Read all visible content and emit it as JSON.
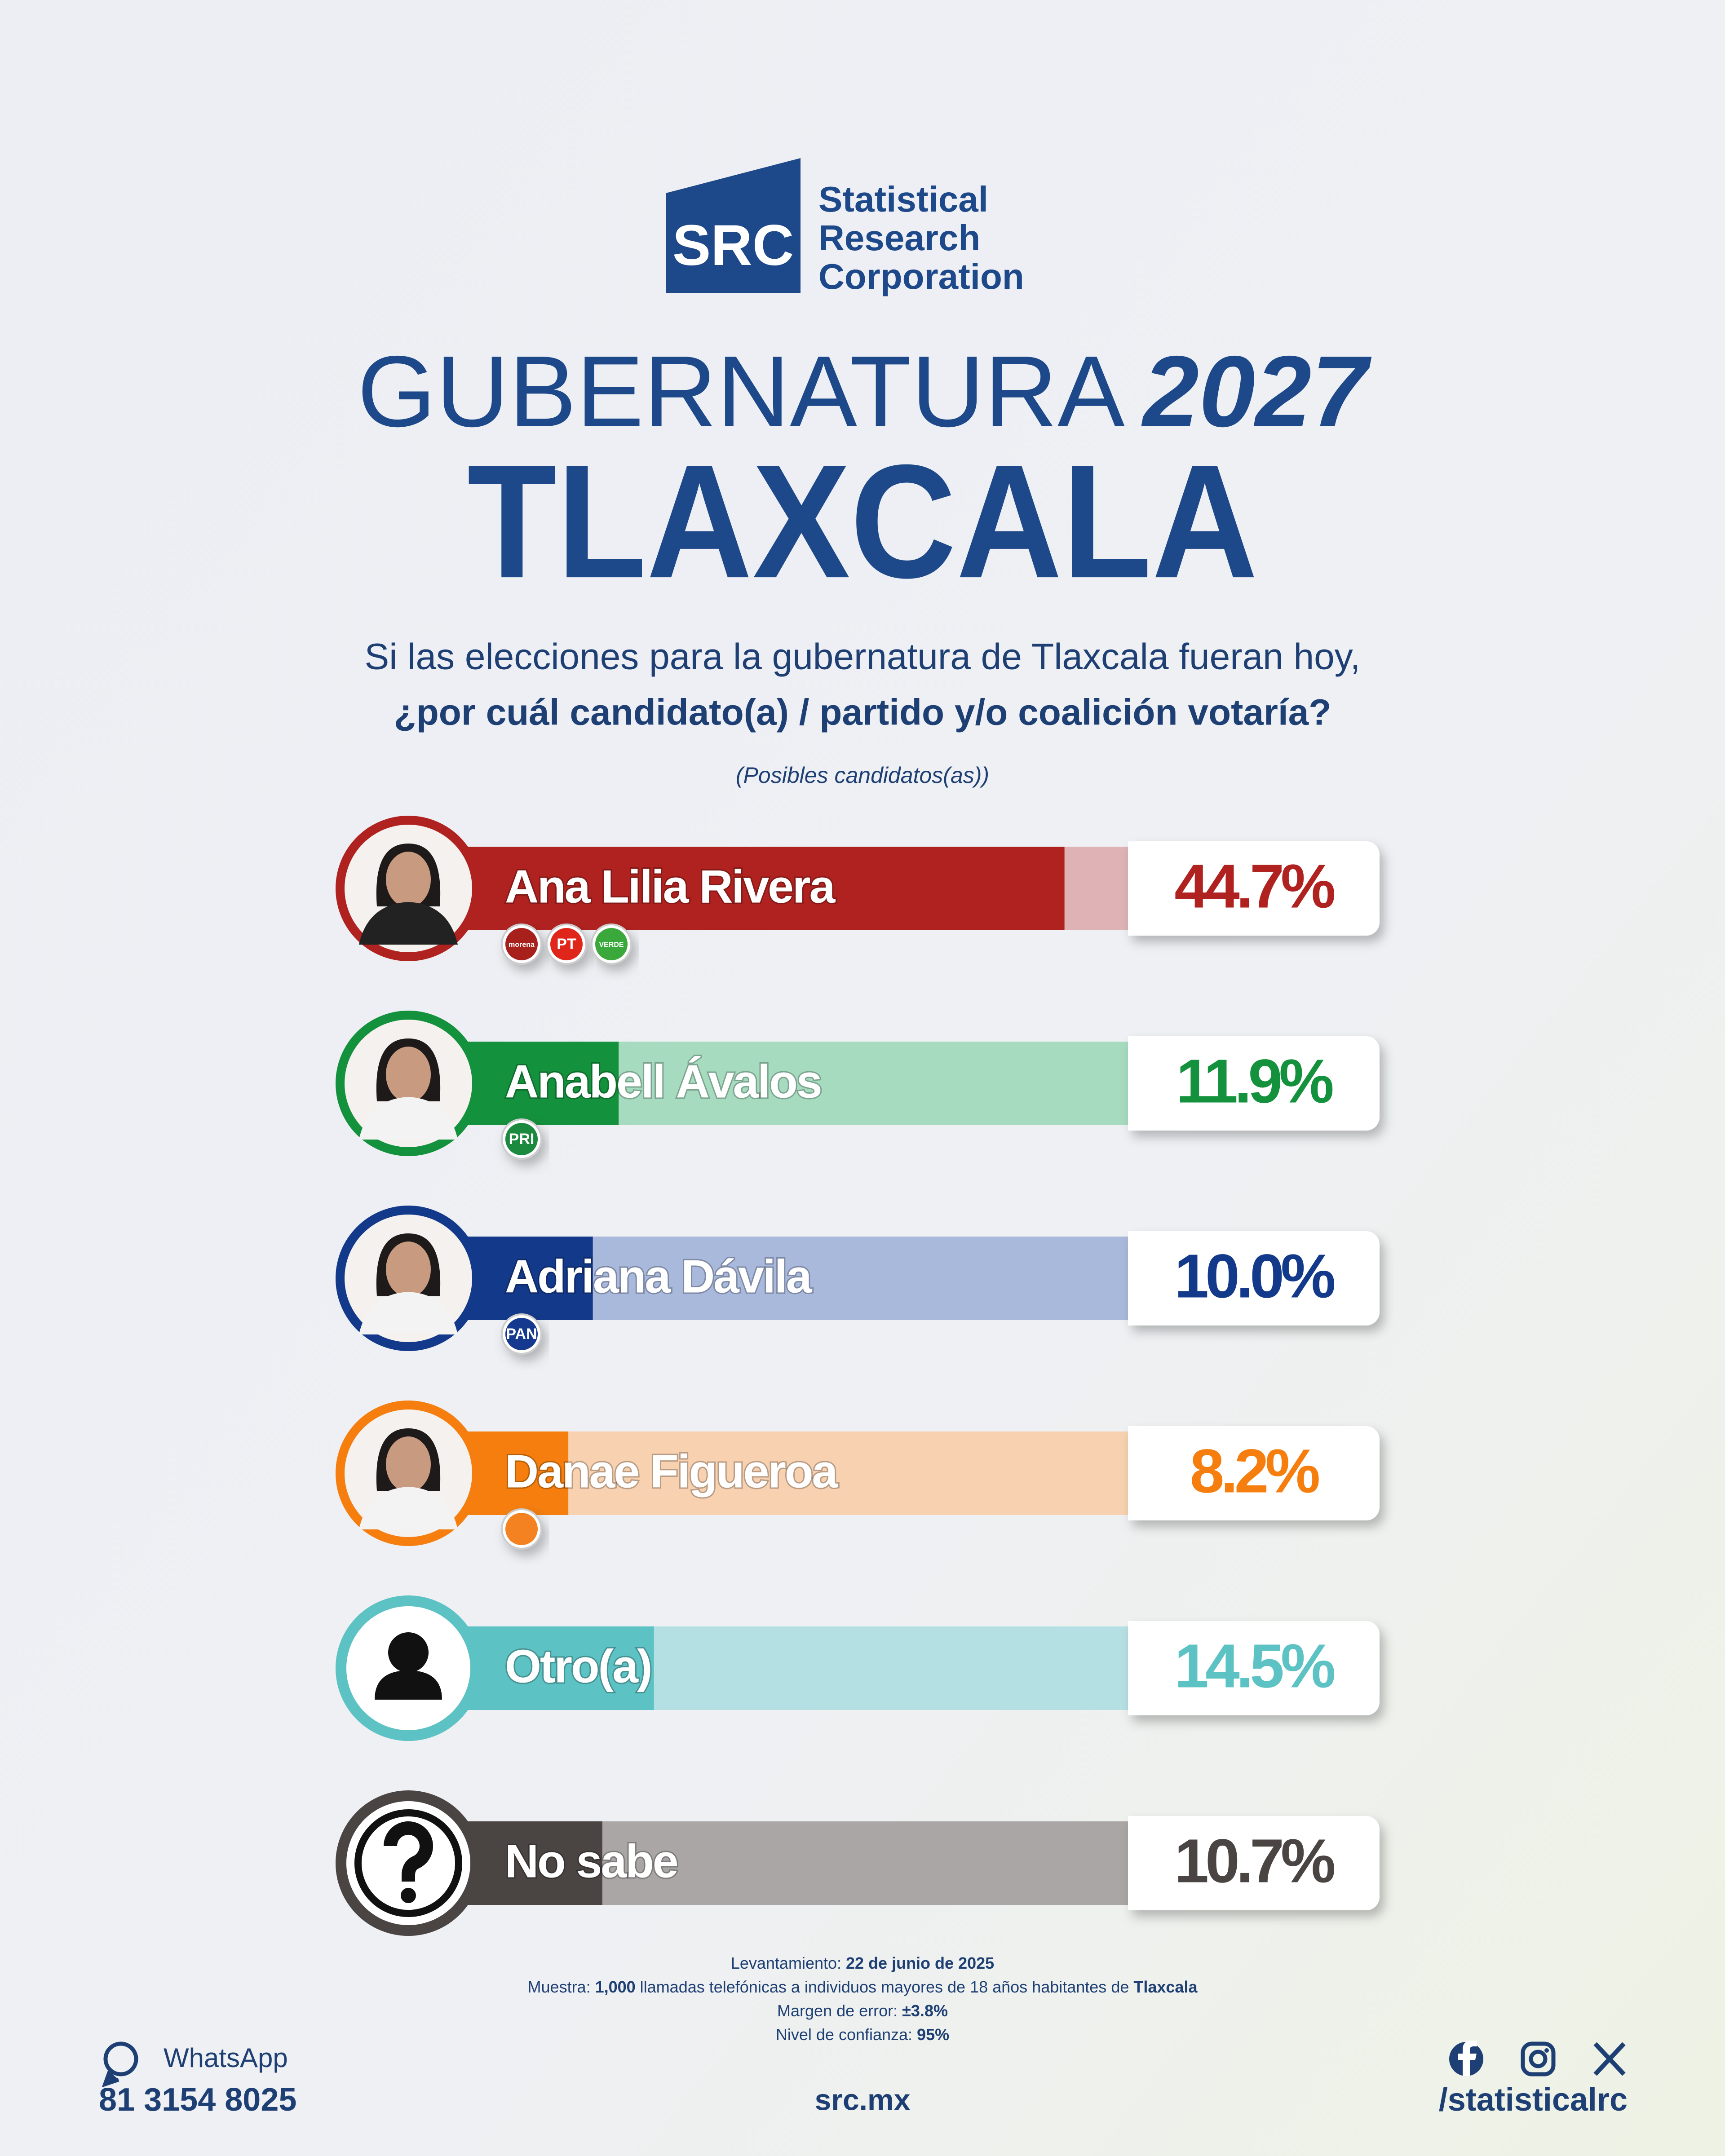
{
  "logo": {
    "mark": "SRC",
    "lines": [
      "Statistical",
      "Research",
      "Corporation"
    ]
  },
  "chart_data": {
    "type": "bar",
    "title": "GUBERNATURA",
    "title_year": "2027",
    "subtitle": "TLAXCALA",
    "question": [
      "Si las elecciones para la gubernatura de Tlaxcala fueran hoy,",
      "¿por cuál candidato(a) / partido y/o coalición votaría?"
    ],
    "note": "(Posibles candidatos(as))",
    "categories": [
      "Ana Lilia Rivera",
      "Anabell Ávalos",
      "Adriana Dávila",
      "Danae Figueroa",
      "Otro(a)",
      "No sabe"
    ],
    "values": [
      44.7,
      11.9,
      10.0,
      8.2,
      14.5,
      10.7
    ],
    "value_labels": [
      "44.7%",
      "11.9%",
      "10.0%",
      "8.2%",
      "14.5%",
      "10.7%"
    ],
    "colors": [
      "#b0221f",
      "#14913c",
      "#13398a",
      "#f57e0f",
      "#5cc2c4",
      "#4a4443"
    ],
    "track_colors": [
      "#dfb3b6",
      "#a6dbbf",
      "#a9b9dc",
      "#f7d1b0",
      "#b5e0e3",
      "#aaa6a6"
    ],
    "parties": [
      [
        {
          "label": "morena",
          "color": "#a8201c"
        },
        {
          "label": "PT",
          "color": "#e0261b"
        },
        {
          "label": "VERDE",
          "color": "#3aa83a"
        }
      ],
      [
        {
          "label": "PRI",
          "color": "#1b8a3e"
        }
      ],
      [
        {
          "label": "PAN",
          "color": "#14398f"
        }
      ],
      [
        {
          "color": "#f58220"
        }
      ],
      [],
      []
    ],
    "xlim": [
      0,
      50
    ]
  },
  "footnotes": [
    [
      {
        "text": "Levantamiento:"
      },
      {
        "text": "22 de junio de 2025",
        "bold": true
      }
    ],
    [
      {
        "text": "Muestra:"
      },
      {
        "text": "1,000",
        "bold": true
      },
      {
        "text": "llamadas telefónicas a individuos mayores de 18 años habitantes de"
      },
      {
        "text": "Tlaxcala",
        "bold": true
      }
    ],
    [
      {
        "text": "Margen de error:"
      },
      {
        "text": "±3.8%",
        "bold": true
      }
    ],
    [
      {
        "text": "Nivel de confianza:"
      },
      {
        "text": "95%",
        "bold": true
      }
    ]
  ],
  "footer": {
    "whatsapp": "WhatsApp",
    "phone": "81 3154 8025",
    "site": "src.mx",
    "social": "/statisticalrc"
  }
}
